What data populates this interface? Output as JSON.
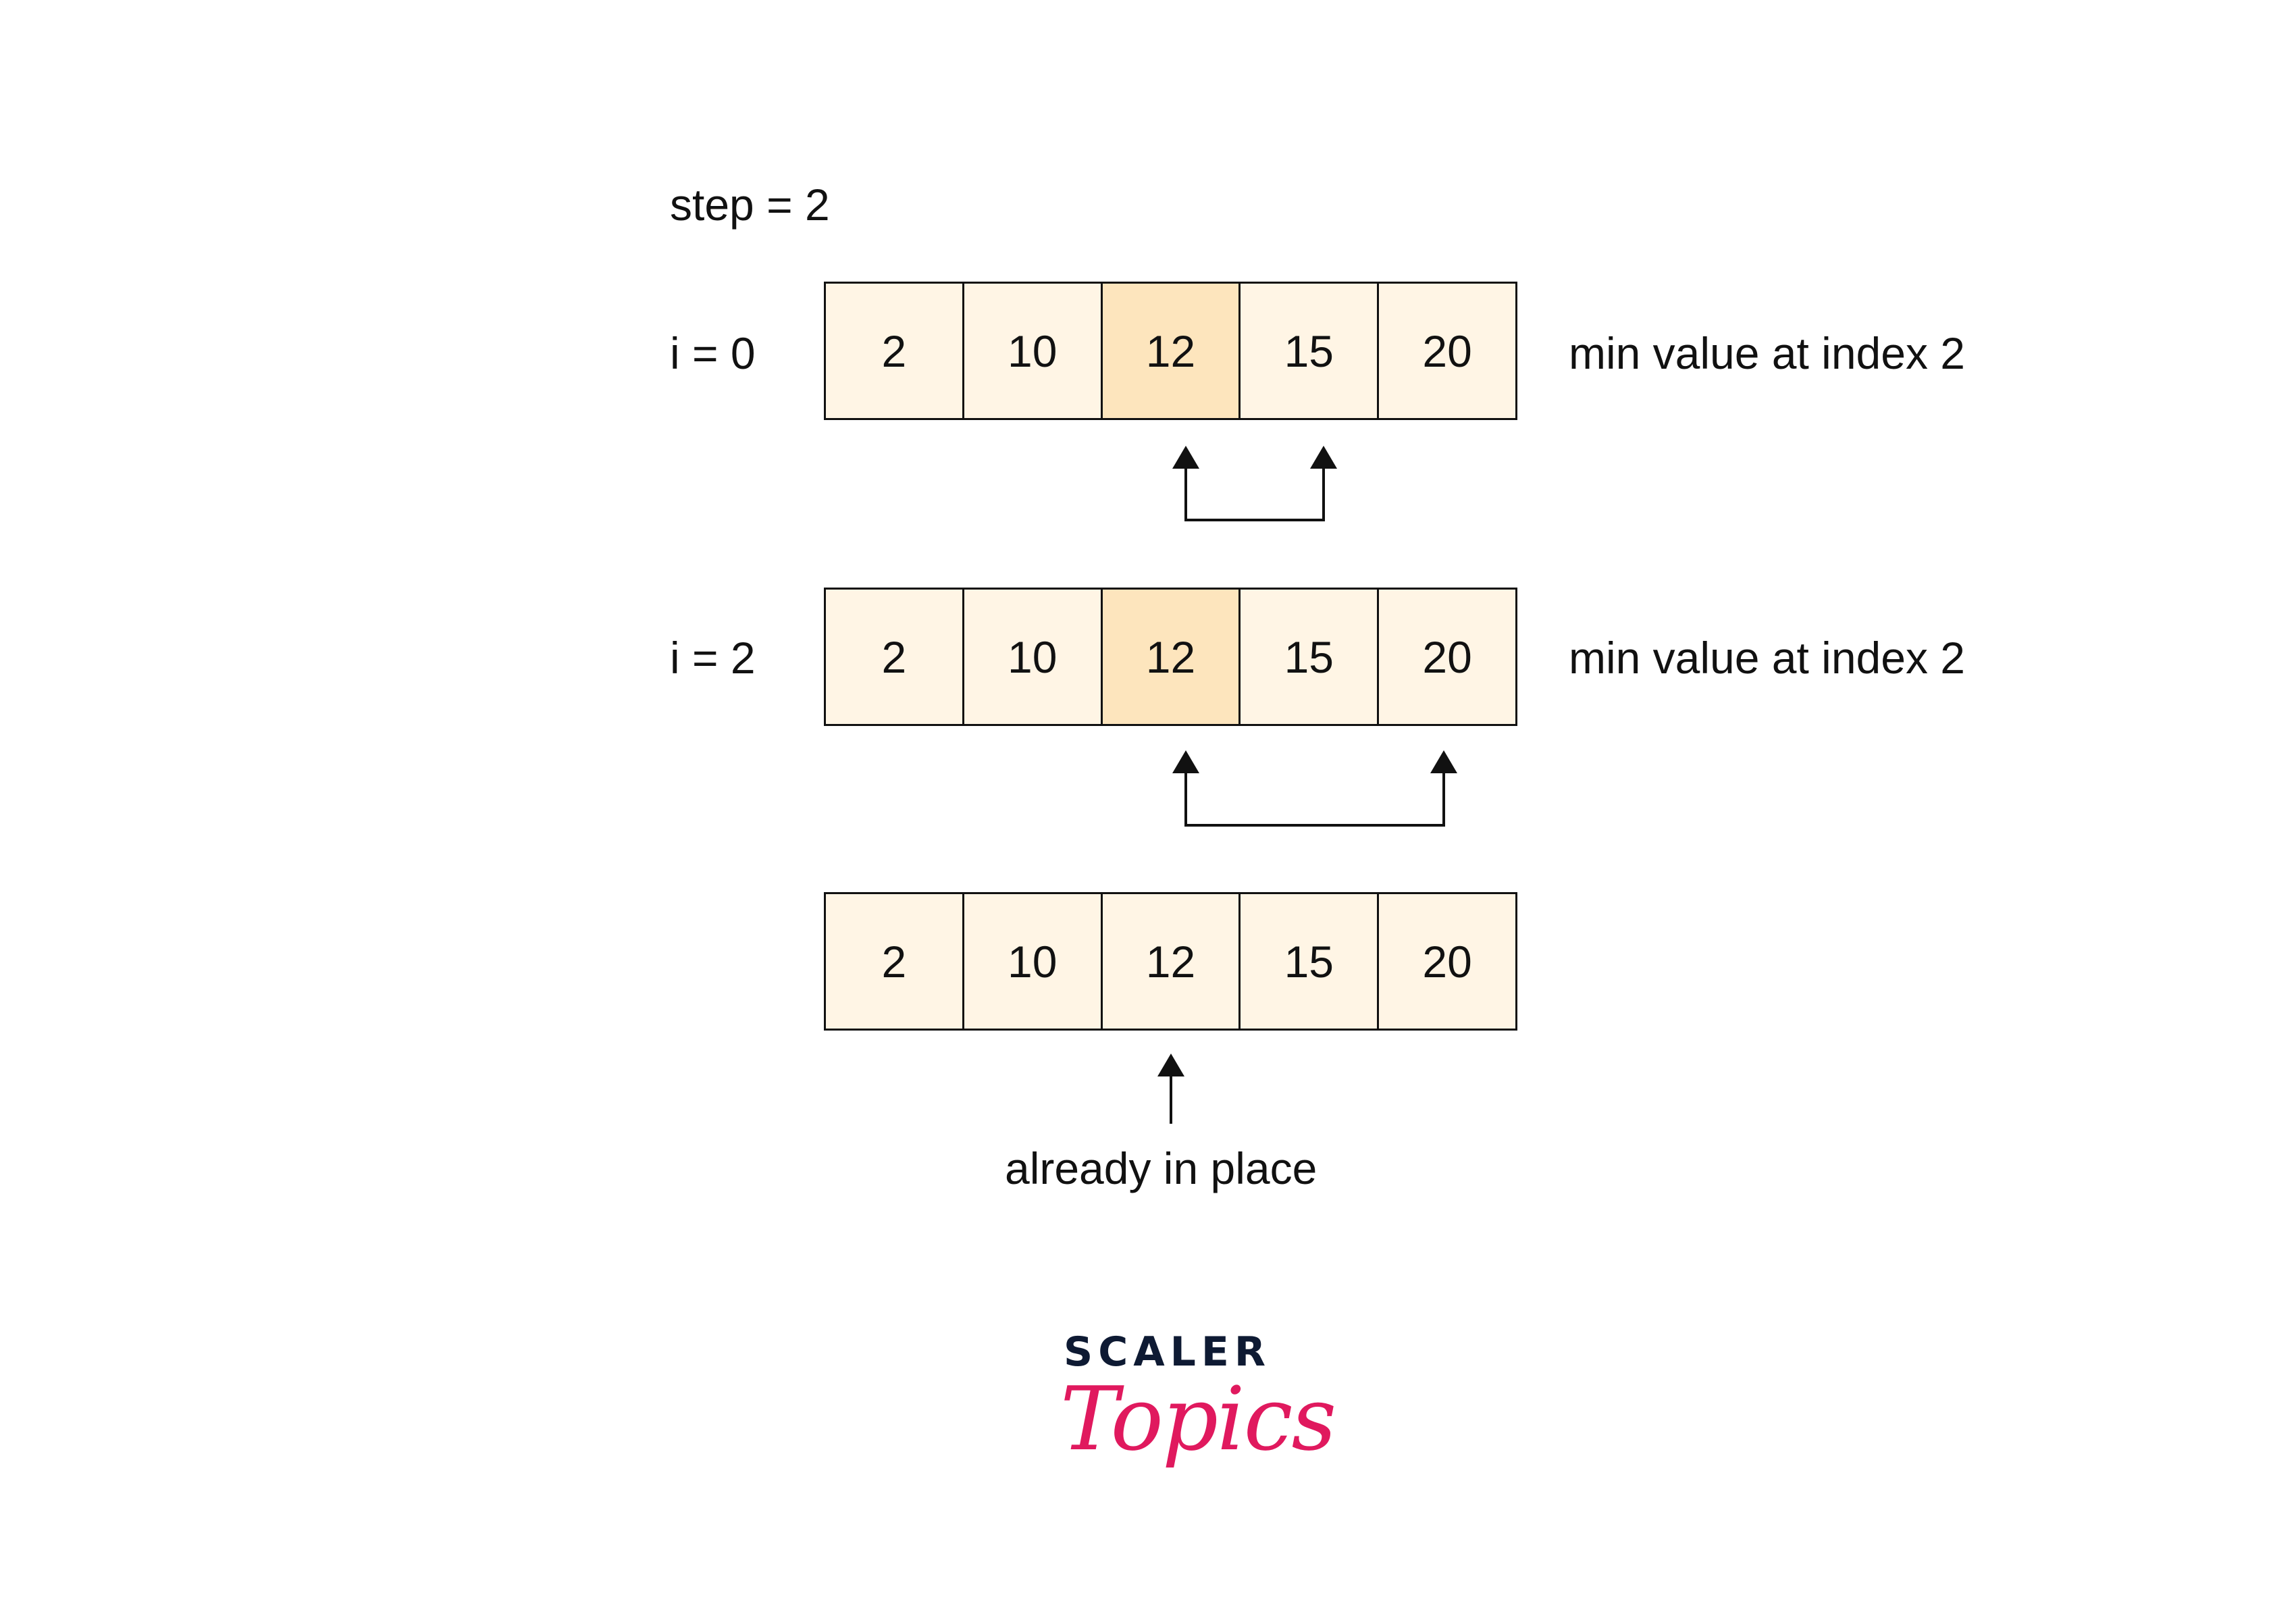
{
  "step_label": "step = 2",
  "rows": [
    {
      "label": "i = 0",
      "values": [
        "2",
        "10",
        "12",
        "15",
        "20"
      ],
      "highlight_index": 2,
      "note": "min value at index 2"
    },
    {
      "label": "i = 2",
      "values": [
        "2",
        "10",
        "12",
        "15",
        "20"
      ],
      "highlight_index": 2,
      "note": "min value at index 2"
    },
    {
      "label": "",
      "values": [
        "2",
        "10",
        "12",
        "15",
        "20"
      ],
      "highlight_index": null,
      "note": ""
    }
  ],
  "swaps": [
    {
      "row": 0,
      "from_index": 2,
      "to_index": 3
    },
    {
      "row": 1,
      "from_index": 2,
      "to_index": 4
    }
  ],
  "pointer": {
    "row": 2,
    "index": 2,
    "label": "already in place"
  },
  "logo": {
    "brand": "SCALER",
    "sub": "Topics"
  },
  "colors": {
    "cell": "#fff5e5",
    "highlight": "#fde5bd",
    "line": "#111111",
    "logo_dark": "#0e1a33",
    "logo_pink": "#e0195e"
  }
}
